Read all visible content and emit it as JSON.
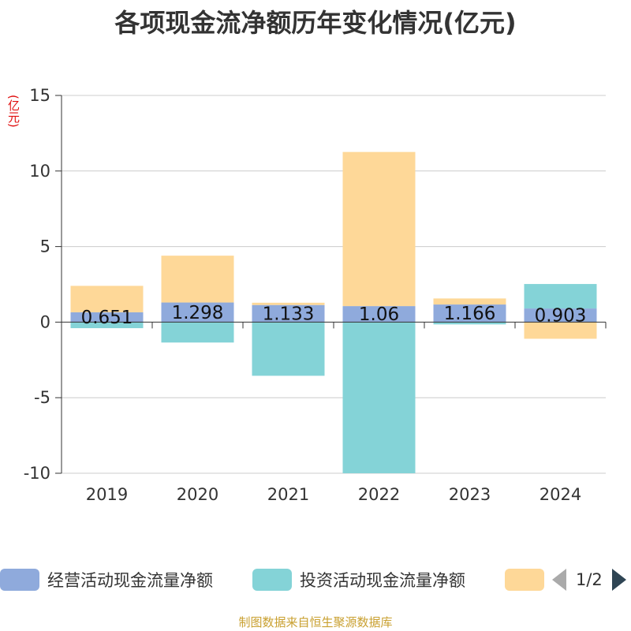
{
  "title": "各项现金流净额历年变化情况(亿元)",
  "unit_label": "(亿元)",
  "source": "制图数据来自恒生聚源数据库",
  "legend": {
    "items": [
      {
        "label": "经营活动现金流量净额",
        "color": "#8faadc"
      },
      {
        "label": "投资活动现金流量净额",
        "color": "#84d3d7"
      },
      {
        "label": "",
        "color": "#fed898"
      }
    ],
    "page": "1/2"
  },
  "chart_data": {
    "type": "bar",
    "stacked": true,
    "categories": [
      "2019",
      "2020",
      "2021",
      "2022",
      "2023",
      "2024"
    ],
    "series": [
      {
        "name": "经营活动现金流量净额",
        "color": "#8faadc",
        "values": [
          0.651,
          1.298,
          1.133,
          1.06,
          1.166,
          0.903
        ]
      },
      {
        "name": "投资活动现金流量净额",
        "color": "#84d3d7",
        "values": [
          -0.4,
          -1.35,
          -3.55,
          -10.0,
          -0.15,
          1.62
        ]
      },
      {
        "name": "",
        "color": "#fed898",
        "values": [
          1.75,
          3.1,
          0.15,
          10.2,
          0.4,
          -1.1
        ]
      }
    ],
    "data_labels": [
      "0.651",
      "1.298",
      "1.133",
      "1.06",
      "1.166",
      "0.903"
    ],
    "y_ticks": [
      15,
      10,
      5,
      0,
      -5,
      -10
    ],
    "ylim": [
      -10,
      15
    ],
    "grid": true,
    "legend_position": "bottom"
  }
}
